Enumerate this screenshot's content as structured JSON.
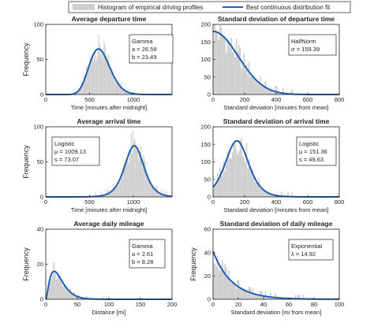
{
  "legend": {
    "histogram_label": "Histogram of empirical driving profiles",
    "fit_label": "Best continuous distribution fit",
    "histogram_color": "#cfcfcf",
    "fit_color": "#1f5fb4"
  },
  "chart_data": [
    {
      "type": "bar",
      "title": "Average departure time",
      "xlabel": "Time [minutes after midnight]",
      "ylabel": "Frequency",
      "xlim": [
        0,
        1440
      ],
      "ylim": [
        0,
        100
      ],
      "xticks": [
        0,
        500,
        1000
      ],
      "yticks": [
        0,
        50,
        100
      ],
      "fit": {
        "distribution": "Gamma",
        "lines": [
          "Gamma",
          "a = 26.59",
          "b = 23.49"
        ],
        "peak": 65
      },
      "hist": {
        "mode": "gamma",
        "p1": 26.59,
        "p2": 23.49,
        "peak": 65,
        "x0": 300,
        "x1": 1140,
        "bin": 10
      }
    },
    {
      "type": "bar",
      "title": "Standard deviation of departure time",
      "xlabel": "Standard deviation [minutes from mean]",
      "ylabel": "",
      "xlim": [
        0,
        800
      ],
      "ylim": [
        0,
        200
      ],
      "xticks": [
        0,
        200,
        400,
        600,
        800
      ],
      "yticks": [
        0,
        50,
        100,
        150,
        200
      ],
      "fit": {
        "distribution": "HalfNorm",
        "lines": [
          "HalfNorm",
          "σ = 159.39"
        ],
        "peak": 180
      },
      "hist": {
        "mode": "halfnorm",
        "p1": 159.39,
        "p2": 0,
        "peak": 180,
        "x0": 0,
        "x1": 500,
        "bin": 8
      }
    },
    {
      "type": "bar",
      "title": "Average arrival time",
      "xlabel": "Time [minutes after midnight]",
      "ylabel": "Frequency",
      "xlim": [
        0,
        1440
      ],
      "ylim": [
        0,
        100
      ],
      "xticks": [
        0,
        500,
        1000
      ],
      "yticks": [
        0,
        50,
        100
      ],
      "fit": {
        "distribution": "Logistic",
        "lines": [
          "Logistic",
          "μ = 1009.13",
          "s = 73.07"
        ],
        "peak": 73
      },
      "hist": {
        "mode": "logistic",
        "p1": 1009.13,
        "p2": 73.07,
        "peak": 73,
        "x0": 520,
        "x1": 1400,
        "bin": 10
      }
    },
    {
      "type": "bar",
      "title": "Standard deviation of arrival time",
      "xlabel": "Standard deviation [minutes from mean]",
      "ylabel": "",
      "xlim": [
        0,
        800
      ],
      "ylim": [
        0,
        200
      ],
      "xticks": [
        0,
        200,
        400,
        600,
        800
      ],
      "yticks": [
        0,
        50,
        100,
        150,
        200
      ],
      "fit": {
        "distribution": "Logistic",
        "lines": [
          "Logistic",
          "μ = 151.36",
          "s = 49.63"
        ],
        "peak": 160
      },
      "hist": {
        "mode": "logistic",
        "p1": 151.36,
        "p2": 49.63,
        "peak": 160,
        "x0": 0,
        "x1": 500,
        "bin": 8
      }
    },
    {
      "type": "bar",
      "title": "Average daily mileage",
      "xlabel": "Distance [mi]",
      "ylabel": "Frequency",
      "xlim": [
        0,
        200
      ],
      "ylim": [
        0,
        40
      ],
      "xticks": [
        0,
        50,
        100,
        150,
        200
      ],
      "yticks": [
        0,
        20,
        40
      ],
      "fit": {
        "distribution": "Gamma",
        "lines": [
          "Gamma",
          "a = 2.61",
          "b = 8.28"
        ],
        "peak": 16
      },
      "hist": {
        "mode": "gamma",
        "p1": 2.61,
        "p2": 8.28,
        "peak": 16,
        "x0": 0,
        "x1": 110,
        "bin": 2
      }
    },
    {
      "type": "bar",
      "title": "Standard deviation of daily mileage",
      "xlabel": "Standard deviation [mi from mean]",
      "ylabel": "Frequency",
      "xlim": [
        0,
        100
      ],
      "ylim": [
        0,
        60
      ],
      "xticks": [
        0,
        20,
        40,
        60,
        80,
        100
      ],
      "yticks": [
        0,
        20,
        40,
        60
      ],
      "fit": {
        "distribution": "Exponential",
        "lines": [
          "Exponential",
          "λ = 14.92"
        ],
        "peak": 41
      },
      "hist": {
        "mode": "exp",
        "p1": 14.92,
        "p2": 0,
        "peak": 41,
        "x0": 0,
        "x1": 75,
        "bin": 1
      }
    }
  ]
}
